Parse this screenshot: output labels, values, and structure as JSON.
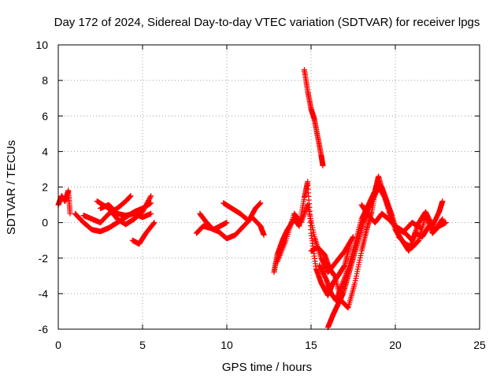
{
  "chart_data": {
    "type": "scatter",
    "title": "Day 172 of 2024, Sidereal Day-to-day VTEC variation (SDTVAR) for receiver lpgs",
    "xlabel": "GPS time / hours",
    "ylabel": "SDTVAR / TECUs",
    "xlim": [
      0,
      25
    ],
    "ylim": [
      -6,
      10
    ],
    "xticks": [
      0,
      5,
      10,
      15,
      20,
      25
    ],
    "yticks": [
      -6,
      -4,
      -2,
      0,
      2,
      4,
      6,
      8,
      10
    ],
    "grid": true,
    "marker": "+",
    "color": "#ff0000",
    "series": [
      {
        "name": "SDTVAR",
        "segments": [
          [
            [
              0.0,
              1.0
            ],
            [
              0.2,
              1.5
            ],
            [
              0.4,
              1.2
            ],
            [
              0.6,
              1.8
            ],
            [
              0.7,
              0.5
            ]
          ],
          [
            [
              1.0,
              0.5
            ],
            [
              1.5,
              0.0
            ],
            [
              2.0,
              -0.4
            ],
            [
              2.5,
              -0.5
            ],
            [
              3.0,
              -0.3
            ],
            [
              3.5,
              0.0
            ],
            [
              4.0,
              0.3
            ],
            [
              4.5,
              0.6
            ],
            [
              5.0,
              0.8
            ],
            [
              5.5,
              1.1
            ]
          ],
          [
            [
              1.5,
              0.4
            ],
            [
              2.0,
              0.2
            ],
            [
              2.5,
              0.0
            ],
            [
              3.0,
              0.5
            ],
            [
              3.5,
              0.8
            ],
            [
              4.0,
              1.2
            ],
            [
              4.3,
              1.5
            ]
          ],
          [
            [
              2.3,
              1.2
            ],
            [
              3.0,
              0.8
            ],
            [
              3.5,
              0.2
            ],
            [
              4.0,
              -0.1
            ],
            [
              4.5,
              0.2
            ],
            [
              5.0,
              0.6
            ],
            [
              5.5,
              1.5
            ]
          ],
          [
            [
              2.5,
              0.8
            ],
            [
              3.0,
              1.0
            ],
            [
              3.5,
              0.5
            ],
            [
              4.0,
              0.4
            ],
            [
              4.5,
              0.5
            ],
            [
              5.0,
              0.3
            ],
            [
              5.5,
              0.5
            ]
          ],
          [
            [
              4.4,
              -1.0
            ],
            [
              4.8,
              -1.2
            ],
            [
              5.2,
              -0.6
            ],
            [
              5.7,
              0.0
            ]
          ],
          [
            [
              8.2,
              -0.6
            ],
            [
              8.6,
              -0.2
            ],
            [
              9.0,
              -0.3
            ],
            [
              9.5,
              -0.5
            ],
            [
              10.0,
              -0.9
            ],
            [
              10.5,
              -0.7
            ],
            [
              11.0,
              -0.2
            ],
            [
              11.5,
              0.3
            ],
            [
              12.0,
              -0.2
            ],
            [
              12.2,
              -0.7
            ]
          ],
          [
            [
              8.4,
              0.5
            ],
            [
              8.8,
              0.0
            ],
            [
              9.2,
              -0.4
            ],
            [
              9.6,
              -0.2
            ],
            [
              10.0,
              0.0
            ]
          ],
          [
            [
              9.8,
              1.1
            ],
            [
              10.3,
              0.8
            ],
            [
              10.8,
              0.5
            ],
            [
              11.3,
              0.1
            ],
            [
              11.7,
              0.8
            ],
            [
              12.0,
              1.1
            ]
          ],
          [
            [
              12.8,
              -2.8
            ],
            [
              13.0,
              -1.8
            ],
            [
              13.3,
              -1.0
            ],
            [
              13.6,
              -0.4
            ],
            [
              14.0,
              0.2
            ],
            [
              14.3,
              -0.2
            ],
            [
              14.6,
              1.4
            ],
            [
              14.8,
              2.3
            ],
            [
              15.0,
              -0.6
            ],
            [
              15.3,
              -2.6
            ],
            [
              15.6,
              -3.4
            ],
            [
              16.0,
              -4.1
            ],
            [
              16.3,
              -3.4
            ],
            [
              16.6,
              -3.0
            ],
            [
              17.0,
              -2.4
            ],
            [
              17.3,
              -1.2
            ]
          ],
          [
            [
              13.0,
              -2.2
            ],
            [
              13.5,
              -1.0
            ],
            [
              14.0,
              0.5
            ],
            [
              14.4,
              0.0
            ],
            [
              14.8,
              1.0
            ],
            [
              15.2,
              -0.8
            ],
            [
              15.6,
              -2.0
            ],
            [
              16.0,
              -2.8
            ],
            [
              16.5,
              -2.2
            ],
            [
              17.0,
              -1.6
            ],
            [
              17.5,
              -0.8
            ]
          ],
          [
            [
              14.6,
              8.6
            ],
            [
              14.8,
              7.4
            ],
            [
              15.0,
              6.4
            ],
            [
              15.2,
              5.8
            ],
            [
              15.4,
              4.8
            ],
            [
              15.6,
              3.8
            ],
            [
              15.7,
              3.2
            ]
          ],
          [
            [
              15.0,
              -1.6
            ],
            [
              15.4,
              -1.4
            ],
            [
              15.8,
              -1.8
            ],
            [
              16.1,
              -2.6
            ],
            [
              16.4,
              -3.0
            ],
            [
              16.8,
              -4.4
            ],
            [
              17.2,
              -4.8
            ],
            [
              17.6,
              -3.4
            ],
            [
              18.0,
              -1.6
            ],
            [
              18.3,
              -0.4
            ],
            [
              18.6,
              0.6
            ],
            [
              18.9,
              2.2
            ],
            [
              19.2,
              2.0
            ],
            [
              19.5,
              1.2
            ],
            [
              19.8,
              0.4
            ],
            [
              20.2,
              -0.8
            ],
            [
              20.6,
              -1.2
            ],
            [
              21.0,
              -1.4
            ],
            [
              21.4,
              -1.0
            ],
            [
              21.8,
              0.4
            ],
            [
              22.2,
              -0.6
            ],
            [
              22.6,
              -0.2
            ],
            [
              23.0,
              0.0
            ]
          ],
          [
            [
              15.5,
              -2.4
            ],
            [
              15.9,
              -3.2
            ],
            [
              16.2,
              -4.0
            ],
            [
              16.5,
              -4.4
            ],
            [
              16.8,
              -3.6
            ],
            [
              17.2,
              -2.6
            ],
            [
              17.6,
              -1.2
            ],
            [
              18.0,
              0.2
            ],
            [
              18.4,
              1.0
            ],
            [
              18.8,
              1.8
            ],
            [
              19.0,
              2.6
            ],
            [
              19.3,
              1.6
            ],
            [
              19.6,
              0.8
            ],
            [
              20.0,
              -0.4
            ],
            [
              20.4,
              -1.0
            ],
            [
              20.8,
              -1.6
            ],
            [
              21.2,
              -0.6
            ],
            [
              21.6,
              -0.8
            ],
            [
              22.0,
              -0.2
            ],
            [
              22.4,
              -0.4
            ],
            [
              22.8,
              0.2
            ]
          ],
          [
            [
              16.0,
              -5.9
            ],
            [
              16.3,
              -5.2
            ],
            [
              16.6,
              -4.6
            ],
            [
              16.9,
              -4.0
            ],
            [
              17.2,
              -3.0
            ],
            [
              17.5,
              -2.0
            ],
            [
              17.8,
              -1.0
            ],
            [
              18.1,
              0.0
            ],
            [
              18.4,
              0.8
            ],
            [
              18.7,
              1.4
            ],
            [
              19.0,
              2.0
            ],
            [
              19.4,
              1.4
            ],
            [
              19.8,
              0.0
            ],
            [
              20.2,
              -0.4
            ],
            [
              20.6,
              -0.6
            ],
            [
              21.0,
              -1.0
            ],
            [
              21.4,
              0.0
            ],
            [
              21.8,
              0.6
            ],
            [
              22.2,
              -0.2
            ],
            [
              22.6,
              0.6
            ],
            [
              22.8,
              1.2
            ]
          ],
          [
            [
              18.0,
              1.0
            ],
            [
              18.4,
              0.4
            ],
            [
              18.8,
              0.0
            ],
            [
              19.2,
              0.5
            ],
            [
              19.6,
              0.2
            ],
            [
              20.0,
              -0.2
            ],
            [
              20.5,
              -0.5
            ],
            [
              21.0,
              0.0
            ],
            [
              21.5,
              -0.3
            ]
          ]
        ]
      }
    ]
  }
}
